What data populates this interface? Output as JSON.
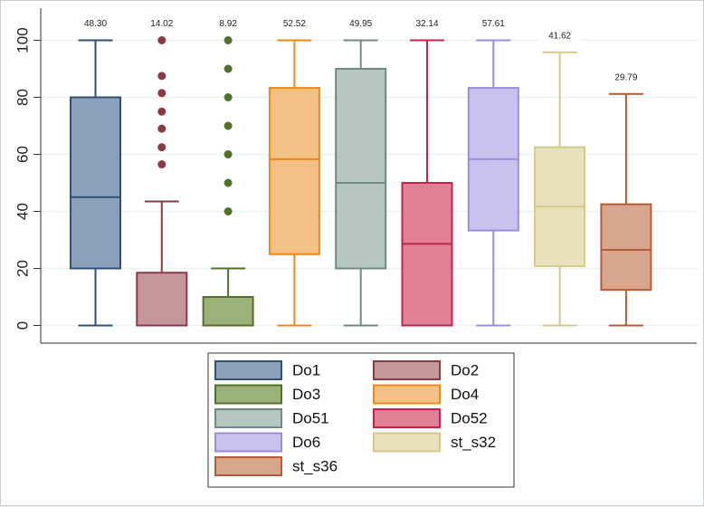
{
  "chart_data": {
    "type": "box",
    "title": "",
    "xlabel": "",
    "ylabel": "",
    "ylim": [
      0,
      100
    ],
    "yticks": [
      0,
      20,
      40,
      60,
      80,
      100
    ],
    "grid": true,
    "legend_position": "bottom",
    "series": [
      {
        "name": "Do1",
        "color": "#8aa1b9",
        "edge": "#2f5177",
        "min": 0,
        "q1": 20,
        "median": 45,
        "q3": 80,
        "max": 100,
        "outliers": [],
        "label": "48.30"
      },
      {
        "name": "Do2",
        "color": "#c5979d",
        "edge": "#8a3a43",
        "min": 0,
        "q1": 0,
        "median": 0,
        "q3": 18.5,
        "max": 43.5,
        "outliers": [
          56.5,
          62.5,
          69,
          75,
          81.5,
          87.5,
          100
        ],
        "label": "14.02"
      },
      {
        "name": "Do3",
        "color": "#9ab17a",
        "edge": "#52712a",
        "min": 0,
        "q1": 0,
        "median": 0,
        "q3": 10,
        "max": 20,
        "outliers": [
          40,
          50,
          60,
          70,
          80,
          90,
          100
        ],
        "label": "8.92"
      },
      {
        "name": "Do4",
        "color": "#f3c185",
        "edge": "#e8891a",
        "min": 0,
        "q1": 25,
        "median": 58.3,
        "q3": 83.3,
        "max": 100,
        "outliers": [],
        "label": "52.52"
      },
      {
        "name": "Do51",
        "color": "#b6c6c0",
        "edge": "#6f8a80",
        "min": 0,
        "q1": 20,
        "median": 50,
        "q3": 90,
        "max": 100,
        "outliers": [],
        "label": "49.95"
      },
      {
        "name": "Do52",
        "color": "#e07f96",
        "edge": "#c2254b",
        "min": 0,
        "q1": 0,
        "median": 28.6,
        "q3": 50,
        "max": 100,
        "outliers": [],
        "label": "32.14"
      },
      {
        "name": "Do6",
        "color": "#c9c2ec",
        "edge": "#9c8ce0",
        "min": 0,
        "q1": 33.3,
        "median": 58.3,
        "q3": 83.3,
        "max": 100,
        "outliers": [],
        "label": "57.61"
      },
      {
        "name": "st_s32",
        "color": "#e7e2bc",
        "edge": "#d4c98a",
        "min": 0,
        "q1": 20.8,
        "median": 41.7,
        "q3": 62.5,
        "max": 95.8,
        "outliers": [],
        "label": "41.62"
      },
      {
        "name": "st_s36",
        "color": "#d8a68c",
        "edge": "#b35c35",
        "min": 0,
        "q1": 12.5,
        "median": 26.5,
        "q3": 42.5,
        "max": 81.2,
        "outliers": [],
        "label": "29.79"
      }
    ]
  }
}
